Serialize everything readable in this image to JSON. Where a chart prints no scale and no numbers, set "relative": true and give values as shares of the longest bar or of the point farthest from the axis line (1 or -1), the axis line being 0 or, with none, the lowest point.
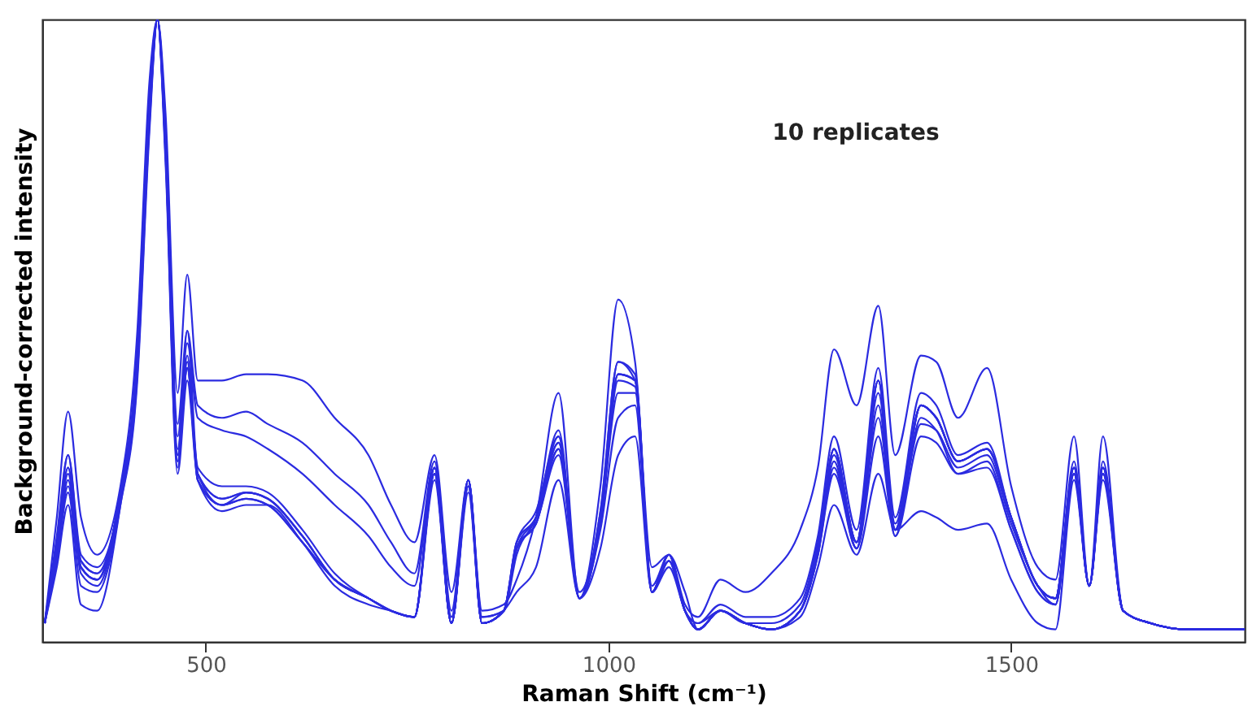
{
  "chart_data": {
    "type": "line",
    "relative": true,
    "xlabel": "Raman Shift (cm⁻¹)",
    "ylabel": "Background-corrected intensity",
    "annotations": [
      "10 replicates"
    ],
    "xlim": [
      297,
      1790
    ],
    "xticks": [
      500,
      1000,
      1500
    ],
    "grid": false,
    "legend": false,
    "line_style": "solid",
    "marker": "none",
    "x": [
      300,
      315,
      329,
      345,
      365,
      394,
      415,
      430,
      440,
      450,
      465,
      477,
      490,
      520,
      550,
      577,
      620,
      660,
      702,
      730,
      759,
      784,
      805,
      826,
      843,
      870,
      886,
      910,
      938,
      964,
      990,
      1012,
      1033,
      1054,
      1075,
      1095,
      1111,
      1139,
      1170,
      1202,
      1238,
      1260,
      1280,
      1308,
      1335,
      1356,
      1388,
      1407,
      1434,
      1470,
      1500,
      1533,
      1555,
      1578,
      1597,
      1614,
      1639,
      1673,
      1720,
      1790
    ],
    "series": [
      {
        "color": "#2b2be0",
        "values": [
          0.03,
          0.2,
          0.37,
          0.2,
          0.14,
          0.25,
          0.5,
          0.9,
          1.0,
          0.85,
          0.4,
          0.59,
          0.42,
          0.42,
          0.43,
          0.43,
          0.42,
          0.36,
          0.3,
          0.22,
          0.16,
          0.3,
          0.08,
          0.26,
          0.05,
          0.06,
          0.1,
          0.2,
          0.4,
          0.07,
          0.25,
          0.55,
          0.45,
          0.12,
          0.14,
          0.06,
          0.04,
          0.1,
          0.08,
          0.11,
          0.18,
          0.28,
          0.47,
          0.38,
          0.54,
          0.3,
          0.46,
          0.45,
          0.36,
          0.44,
          0.25,
          0.12,
          0.1,
          0.33,
          0.09,
          0.33,
          0.05,
          0.03,
          0.02,
          0.02
        ]
      },
      {
        "color": "#2b2be0",
        "values": [
          0.03,
          0.17,
          0.3,
          0.14,
          0.12,
          0.24,
          0.47,
          0.88,
          1.0,
          0.82,
          0.35,
          0.5,
          0.38,
          0.36,
          0.37,
          0.35,
          0.32,
          0.27,
          0.22,
          0.16,
          0.11,
          0.29,
          0.05,
          0.26,
          0.04,
          0.05,
          0.14,
          0.2,
          0.34,
          0.07,
          0.21,
          0.45,
          0.42,
          0.09,
          0.14,
          0.05,
          0.03,
          0.06,
          0.04,
          0.04,
          0.07,
          0.17,
          0.33,
          0.18,
          0.44,
          0.2,
          0.4,
          0.38,
          0.3,
          0.32,
          0.2,
          0.09,
          0.07,
          0.29,
          0.09,
          0.29,
          0.05,
          0.03,
          0.02,
          0.02
        ]
      },
      {
        "color": "#2b2be0",
        "values": [
          0.03,
          0.16,
          0.28,
          0.13,
          0.11,
          0.24,
          0.46,
          0.86,
          1.0,
          0.81,
          0.33,
          0.48,
          0.36,
          0.34,
          0.33,
          0.31,
          0.27,
          0.22,
          0.17,
          0.12,
          0.09,
          0.28,
          0.04,
          0.26,
          0.04,
          0.05,
          0.15,
          0.2,
          0.33,
          0.07,
          0.2,
          0.43,
          0.42,
          0.08,
          0.14,
          0.05,
          0.03,
          0.05,
          0.03,
          0.03,
          0.06,
          0.16,
          0.3,
          0.16,
          0.4,
          0.19,
          0.38,
          0.36,
          0.29,
          0.31,
          0.2,
          0.09,
          0.07,
          0.28,
          0.09,
          0.28,
          0.05,
          0.03,
          0.02,
          0.02
        ]
      },
      {
        "color": "#2b2be0",
        "values": [
          0.03,
          0.15,
          0.28,
          0.12,
          0.1,
          0.24,
          0.45,
          0.85,
          1.0,
          0.8,
          0.3,
          0.45,
          0.27,
          0.23,
          0.24,
          0.23,
          0.17,
          0.1,
          0.07,
          0.05,
          0.04,
          0.28,
          0.03,
          0.26,
          0.03,
          0.05,
          0.16,
          0.2,
          0.32,
          0.07,
          0.2,
          0.43,
          0.42,
          0.08,
          0.14,
          0.05,
          0.02,
          0.05,
          0.03,
          0.02,
          0.05,
          0.15,
          0.31,
          0.16,
          0.42,
          0.18,
          0.38,
          0.36,
          0.29,
          0.31,
          0.2,
          0.09,
          0.07,
          0.28,
          0.09,
          0.28,
          0.05,
          0.03,
          0.02,
          0.02
        ]
      },
      {
        "color": "#2b2be0",
        "values": [
          0.03,
          0.14,
          0.25,
          0.12,
          0.1,
          0.23,
          0.44,
          0.84,
          1.0,
          0.79,
          0.29,
          0.44,
          0.26,
          0.22,
          0.23,
          0.22,
          0.16,
          0.1,
          0.07,
          0.05,
          0.04,
          0.27,
          0.03,
          0.25,
          0.03,
          0.05,
          0.15,
          0.19,
          0.31,
          0.07,
          0.19,
          0.4,
          0.4,
          0.08,
          0.13,
          0.05,
          0.02,
          0.05,
          0.03,
          0.02,
          0.05,
          0.14,
          0.29,
          0.15,
          0.38,
          0.18,
          0.35,
          0.34,
          0.28,
          0.3,
          0.19,
          0.09,
          0.06,
          0.27,
          0.09,
          0.27,
          0.05,
          0.03,
          0.02,
          0.02
        ]
      },
      {
        "color": "#2b2be0",
        "values": [
          0.03,
          0.16,
          0.3,
          0.13,
          0.11,
          0.24,
          0.46,
          0.86,
          1.0,
          0.81,
          0.31,
          0.46,
          0.26,
          0.21,
          0.22,
          0.22,
          0.16,
          0.09,
          0.06,
          0.05,
          0.04,
          0.28,
          0.03,
          0.26,
          0.03,
          0.05,
          0.16,
          0.21,
          0.33,
          0.07,
          0.21,
          0.45,
          0.43,
          0.08,
          0.14,
          0.05,
          0.02,
          0.05,
          0.03,
          0.02,
          0.05,
          0.15,
          0.31,
          0.16,
          0.42,
          0.18,
          0.38,
          0.36,
          0.29,
          0.31,
          0.2,
          0.09,
          0.07,
          0.28,
          0.09,
          0.28,
          0.05,
          0.03,
          0.02,
          0.02
        ]
      },
      {
        "color": "#2b2be0",
        "values": [
          0.03,
          0.12,
          0.22,
          0.06,
          0.05,
          0.22,
          0.43,
          0.83,
          1.0,
          0.78,
          0.28,
          0.44,
          0.28,
          0.25,
          0.25,
          0.24,
          0.18,
          0.11,
          0.07,
          0.05,
          0.04,
          0.27,
          0.03,
          0.25,
          0.03,
          0.05,
          0.15,
          0.19,
          0.31,
          0.07,
          0.19,
          0.42,
          0.41,
          0.08,
          0.13,
          0.05,
          0.02,
          0.05,
          0.03,
          0.02,
          0.05,
          0.14,
          0.28,
          0.15,
          0.36,
          0.17,
          0.36,
          0.34,
          0.27,
          0.28,
          0.18,
          0.08,
          0.06,
          0.27,
          0.09,
          0.27,
          0.05,
          0.03,
          0.02,
          0.02
        ]
      },
      {
        "color": "#2b2be0",
        "values": [
          0.03,
          0.14,
          0.26,
          0.11,
          0.09,
          0.23,
          0.44,
          0.84,
          1.0,
          0.79,
          0.29,
          0.44,
          0.27,
          0.23,
          0.24,
          0.23,
          0.17,
          0.1,
          0.07,
          0.05,
          0.04,
          0.27,
          0.03,
          0.25,
          0.03,
          0.05,
          0.15,
          0.19,
          0.3,
          0.07,
          0.18,
          0.36,
          0.38,
          0.08,
          0.13,
          0.05,
          0.02,
          0.05,
          0.03,
          0.02,
          0.05,
          0.14,
          0.27,
          0.15,
          0.33,
          0.17,
          0.33,
          0.32,
          0.27,
          0.29,
          0.18,
          0.08,
          0.06,
          0.27,
          0.09,
          0.27,
          0.05,
          0.03,
          0.02,
          0.02
        ]
      },
      {
        "color": "#2b2be0",
        "values": [
          0.03,
          0.15,
          0.27,
          0.12,
          0.1,
          0.24,
          0.45,
          0.85,
          1.0,
          0.8,
          0.3,
          0.5,
          0.27,
          0.22,
          0.24,
          0.23,
          0.17,
          0.1,
          0.07,
          0.05,
          0.04,
          0.28,
          0.03,
          0.26,
          0.03,
          0.05,
          0.16,
          0.2,
          0.32,
          0.08,
          0.2,
          0.43,
          0.42,
          0.08,
          0.14,
          0.08,
          0.02,
          0.05,
          0.03,
          0.02,
          0.05,
          0.15,
          0.31,
          0.16,
          0.42,
          0.18,
          0.38,
          0.36,
          0.29,
          0.31,
          0.2,
          0.09,
          0.07,
          0.28,
          0.09,
          0.28,
          0.05,
          0.03,
          0.02,
          0.02
        ]
      },
      {
        "color": "#2b2be0",
        "values": [
          0.03,
          0.13,
          0.24,
          0.09,
          0.08,
          0.22,
          0.42,
          0.82,
          1.0,
          0.77,
          0.27,
          0.42,
          0.26,
          0.22,
          0.23,
          0.22,
          0.16,
          0.1,
          0.07,
          0.05,
          0.04,
          0.26,
          0.03,
          0.24,
          0.03,
          0.05,
          0.08,
          0.12,
          0.26,
          0.07,
          0.15,
          0.3,
          0.33,
          0.08,
          0.12,
          0.05,
          0.02,
          0.05,
          0.03,
          0.02,
          0.04,
          0.12,
          0.22,
          0.14,
          0.27,
          0.18,
          0.21,
          0.2,
          0.18,
          0.19,
          0.1,
          0.03,
          0.02,
          0.26,
          0.09,
          0.26,
          0.05,
          0.03,
          0.02,
          0.02
        ]
      }
    ]
  }
}
